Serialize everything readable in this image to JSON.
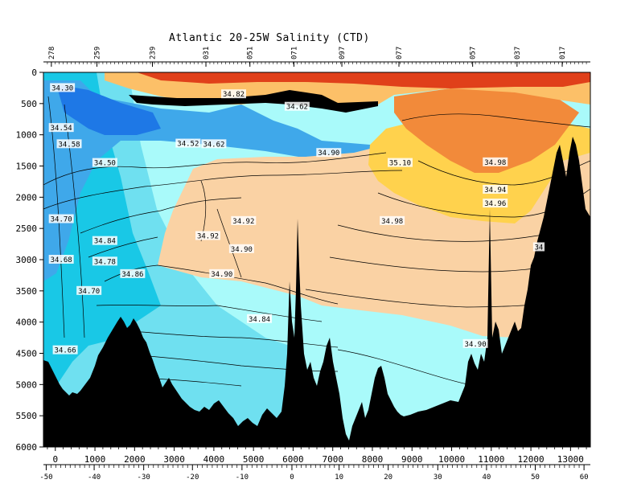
{
  "chart_data": {
    "type": "heatmap",
    "title": "Atlantic 20-25W Salinity (CTD)",
    "x_axis": {
      "label": "",
      "unit": "km",
      "range": [
        -300,
        13500
      ],
      "ticks": [
        0,
        1000,
        2000,
        3000,
        4000,
        5000,
        6000,
        7000,
        8000,
        9000,
        10000,
        11000,
        12000,
        13000
      ],
      "tick_labels": [
        "0",
        "1000",
        "2000",
        "3000",
        "4000",
        "5000",
        "6000",
        "7000",
        "8000",
        "9000",
        "10000",
        "11000",
        "12000",
        "13000"
      ]
    },
    "latitude_axis": {
      "label": "",
      "ticks": [
        -50,
        -40,
        -30,
        -20,
        -10,
        0,
        10,
        20,
        30,
        40,
        50,
        60
      ],
      "tick_labels": [
        "-50",
        "-40",
        "-30",
        "-20",
        "-10",
        "0",
        "10",
        "20",
        "30",
        "40",
        "50",
        "60"
      ],
      "km_positions": [
        -230,
        980,
        2230,
        3460,
        4710,
        5970,
        7160,
        8400,
        9650,
        10880,
        12110,
        13340
      ]
    },
    "y_axis": {
      "label": "",
      "unit": "m",
      "range": [
        0,
        6000
      ],
      "inverted": true,
      "ticks": [
        0,
        500,
        1000,
        1500,
        2000,
        2500,
        3000,
        3500,
        4000,
        4500,
        5000,
        5500,
        6000
      ],
      "tick_labels": [
        "0",
        "500",
        "1000",
        "1500",
        "2000",
        "2500",
        "3000",
        "3500",
        "4000",
        "4500",
        "5000",
        "5500",
        "6000"
      ]
    },
    "stations": {
      "labels": [
        "278",
        "259",
        "239",
        "031",
        "051",
        "071",
        "097",
        "077",
        "057",
        "037",
        "017"
      ],
      "km_positions": [
        -100,
        1050,
        2450,
        3800,
        4910,
        6020,
        7230,
        8670,
        10530,
        11650,
        12790
      ]
    },
    "salinity_contours": [
      {
        "label": "34.30",
        "x_km": 180,
        "depth_m": 250
      },
      {
        "label": "34.54",
        "x_km": 150,
        "depth_m": 890
      },
      {
        "label": "34.58",
        "x_km": 350,
        "depth_m": 1150
      },
      {
        "label": "34.50",
        "x_km": 1250,
        "depth_m": 1450
      },
      {
        "label": "34.70",
        "x_km": 150,
        "depth_m": 2350
      },
      {
        "label": "34.84",
        "x_km": 1250,
        "depth_m": 2700
      },
      {
        "label": "34.68",
        "x_km": 150,
        "depth_m": 3000
      },
      {
        "label": "34.78",
        "x_km": 1250,
        "depth_m": 3030
      },
      {
        "label": "34.86",
        "x_km": 1950,
        "depth_m": 3230
      },
      {
        "label": "34.70",
        "x_km": 850,
        "depth_m": 3500
      },
      {
        "label": "34.66",
        "x_km": 250,
        "depth_m": 4450
      },
      {
        "label": "34.82",
        "x_km": 4500,
        "depth_m": 350
      },
      {
        "label": "34.62",
        "x_km": 6100,
        "depth_m": 550
      },
      {
        "label": "34.52",
        "x_km": 3350,
        "depth_m": 1140
      },
      {
        "label": "34.62",
        "x_km": 4000,
        "depth_m": 1150
      },
      {
        "label": "34.90",
        "x_km": 6900,
        "depth_m": 1290
      },
      {
        "label": "35.10",
        "x_km": 8700,
        "depth_m": 1450
      },
      {
        "label": "34.98",
        "x_km": 11100,
        "depth_m": 1440
      },
      {
        "label": "34.94",
        "x_km": 11100,
        "depth_m": 1880
      },
      {
        "label": "34.96",
        "x_km": 11100,
        "depth_m": 2100
      },
      {
        "label": "34.98",
        "x_km": 8500,
        "depth_m": 2380
      },
      {
        "label": "34.92",
        "x_km": 4750,
        "depth_m": 2380
      },
      {
        "label": "34.92",
        "x_km": 3850,
        "depth_m": 2620
      },
      {
        "label": "34.90",
        "x_km": 4700,
        "depth_m": 2830
      },
      {
        "label": "34.90",
        "x_km": 4200,
        "depth_m": 3230
      },
      {
        "label": "34.84",
        "x_km": 5150,
        "depth_m": 3950
      },
      {
        "label": "34.90",
        "x_km": 10600,
        "depth_m": 4350
      },
      {
        "label": "34",
        "x_km": 12200,
        "depth_m": 2800
      }
    ],
    "colors": {
      "fresh_deep_blue": "#1e78e6",
      "fresh_blue": "#3fa8ea",
      "mid_cyan": "#19c8e6",
      "light_cyan": "#6fe0f0",
      "pale_cyan": "#a9fafa",
      "peach": "#fad2a4",
      "light_orange": "#fcc068",
      "yellow_orange": "#ffd24d",
      "orange": "#f28a3a",
      "red": "#e0401a",
      "seafloor": "#000000"
    }
  }
}
